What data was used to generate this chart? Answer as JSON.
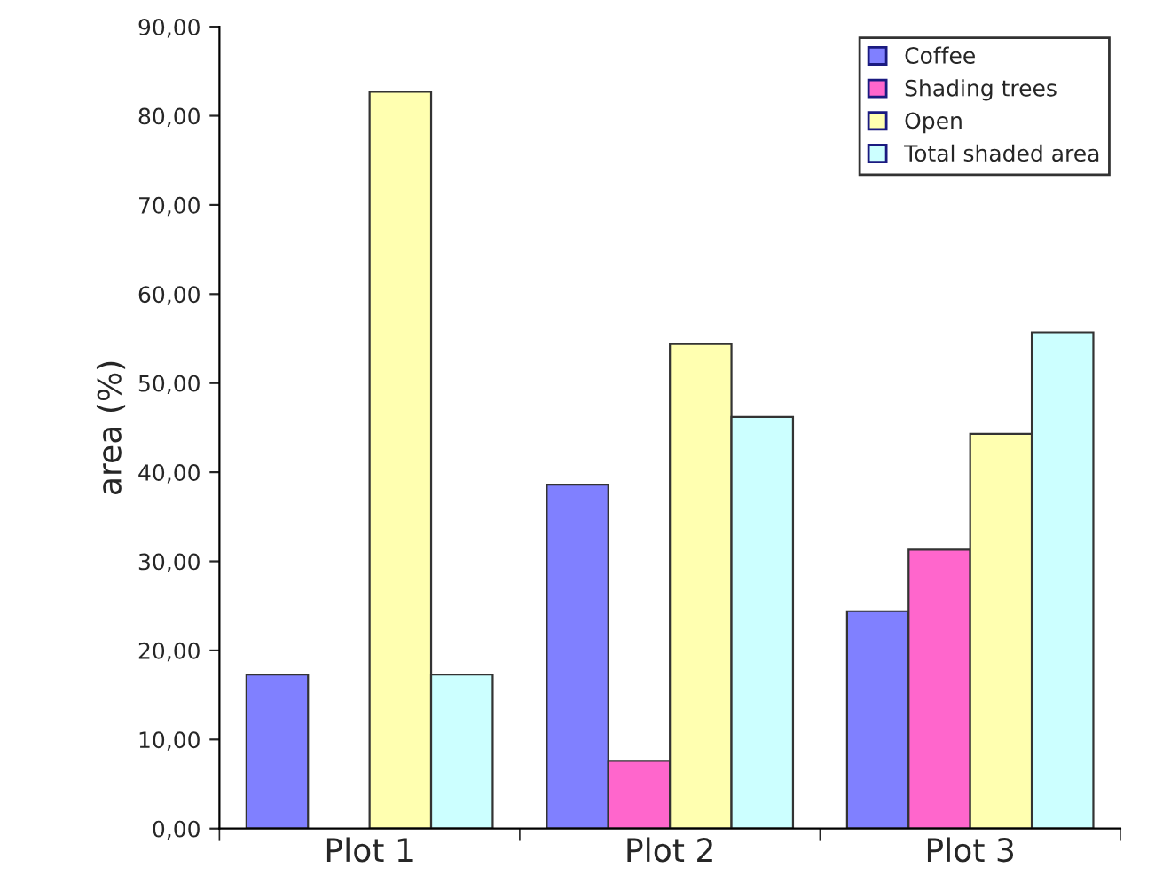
{
  "chart_data": {
    "type": "bar",
    "ylabel": "area (%)",
    "categories": [
      "Plot 1",
      "Plot 2",
      "Plot 3"
    ],
    "series": [
      {
        "name": "Coffee",
        "color": "#8080ff",
        "values": [
          17.3,
          38.6,
          24.4
        ]
      },
      {
        "name": "Shading trees",
        "color": "#ff66cc",
        "values": [
          null,
          7.6,
          31.3
        ]
      },
      {
        "name": "Open",
        "color": "#ffffb0",
        "values": [
          82.7,
          54.4,
          44.3
        ]
      },
      {
        "name": "Total shaded area",
        "color": "#ccffff",
        "values": [
          17.3,
          46.2,
          55.7
        ]
      }
    ],
    "ylim": [
      0,
      90
    ],
    "yticks": [
      {
        "value": 0,
        "label": "0,00"
      },
      {
        "value": 10,
        "label": "10,00"
      },
      {
        "value": 20,
        "label": "20,00"
      },
      {
        "value": 30,
        "label": "30,00"
      },
      {
        "value": 40,
        "label": "40,00"
      },
      {
        "value": 50,
        "label": "50,00"
      },
      {
        "value": 60,
        "label": "60,00"
      },
      {
        "value": 70,
        "label": "70,00"
      },
      {
        "value": 80,
        "label": "80,00"
      },
      {
        "value": 90,
        "label": "90,00"
      }
    ],
    "legend": "top right",
    "grid": false
  }
}
